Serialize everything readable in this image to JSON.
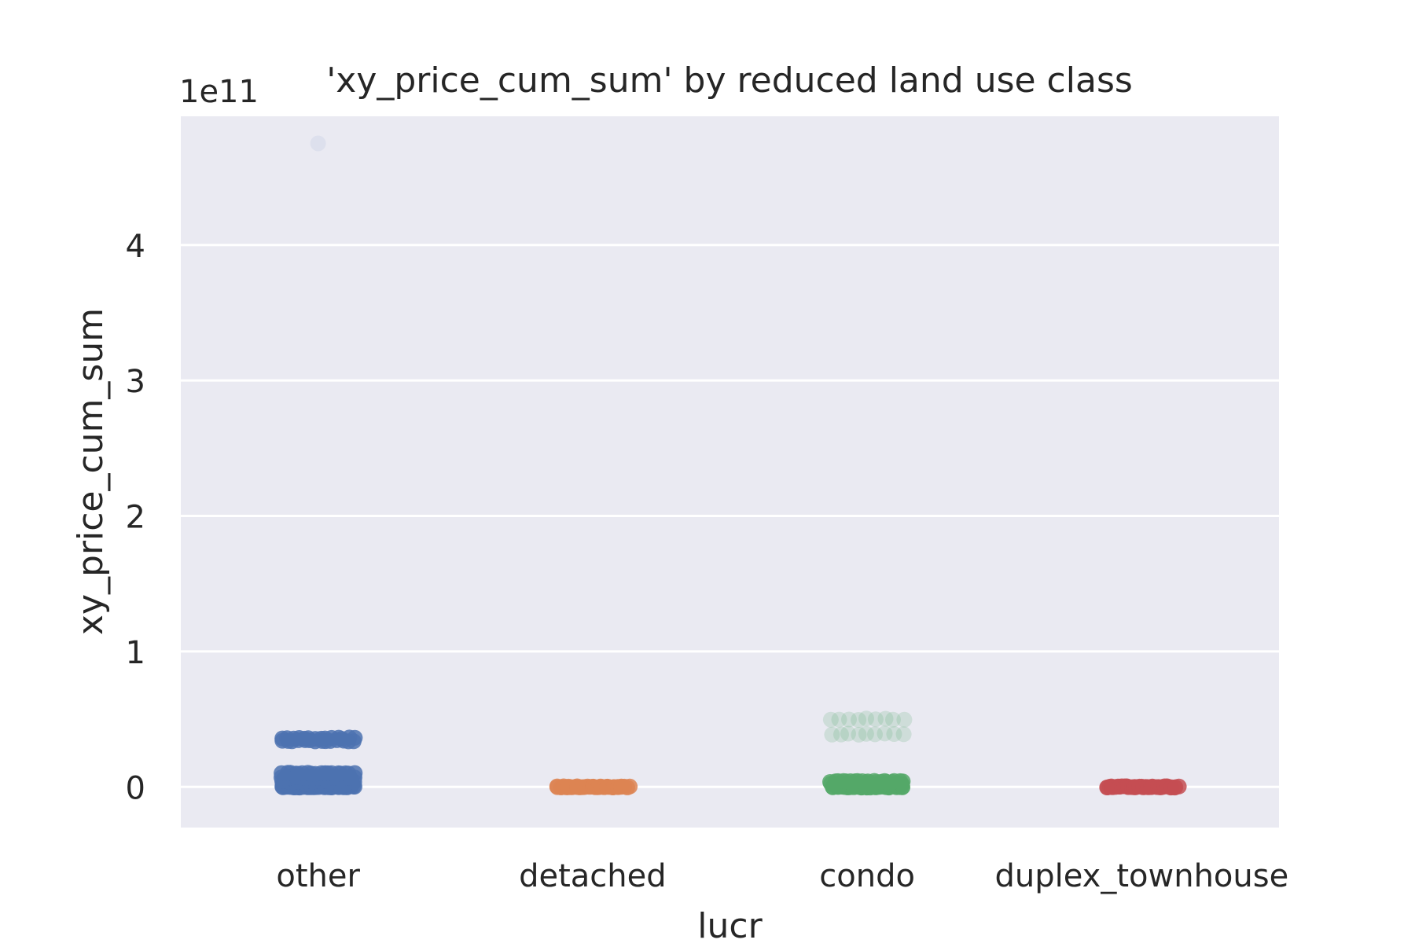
{
  "chart_data": {
    "type": "scatter",
    "subtype": "strip",
    "title": "'xy_price_cum_sum' by reduced land use class",
    "xlabel": "lucr",
    "ylabel": "xy_price_cum_sum",
    "y_offset_text": "1e11",
    "categories": [
      "other",
      "detached",
      "condo",
      "duplex_townhouse"
    ],
    "ylim": [
      -0.3,
      4.95
    ],
    "yticks": [
      0,
      1,
      2,
      3,
      4
    ],
    "grid": true,
    "background": "#eaeaf2",
    "series": [
      {
        "category": "other",
        "color": "#4c72b0",
        "clusters": [
          {
            "y": 0.0,
            "n": 40
          },
          {
            "y": 0.02,
            "n": 30
          },
          {
            "y": 0.04,
            "n": 30
          },
          {
            "y": 0.07,
            "n": 25
          },
          {
            "y": 0.1,
            "n": 18
          },
          {
            "y": 0.34,
            "n": 14
          },
          {
            "y": 0.36,
            "n": 14
          }
        ],
        "outliers": [
          4.75
        ]
      },
      {
        "category": "detached",
        "color": "#dd8452",
        "clusters": [
          {
            "y": 0.0,
            "n": 40
          }
        ],
        "outliers": []
      },
      {
        "category": "condo",
        "color": "#55a868",
        "clusters": [
          {
            "y": 0.0,
            "n": 40
          },
          {
            "y": 0.02,
            "n": 30
          },
          {
            "y": 0.04,
            "n": 20
          },
          {
            "y": 0.39,
            "n": 9,
            "faint": true
          },
          {
            "y": 0.5,
            "n": 9,
            "faint": true
          }
        ],
        "outliers": []
      },
      {
        "category": "duplex_townhouse",
        "color": "#c44e52",
        "clusters": [
          {
            "y": 0.0,
            "n": 40
          }
        ],
        "outliers": []
      }
    ]
  }
}
